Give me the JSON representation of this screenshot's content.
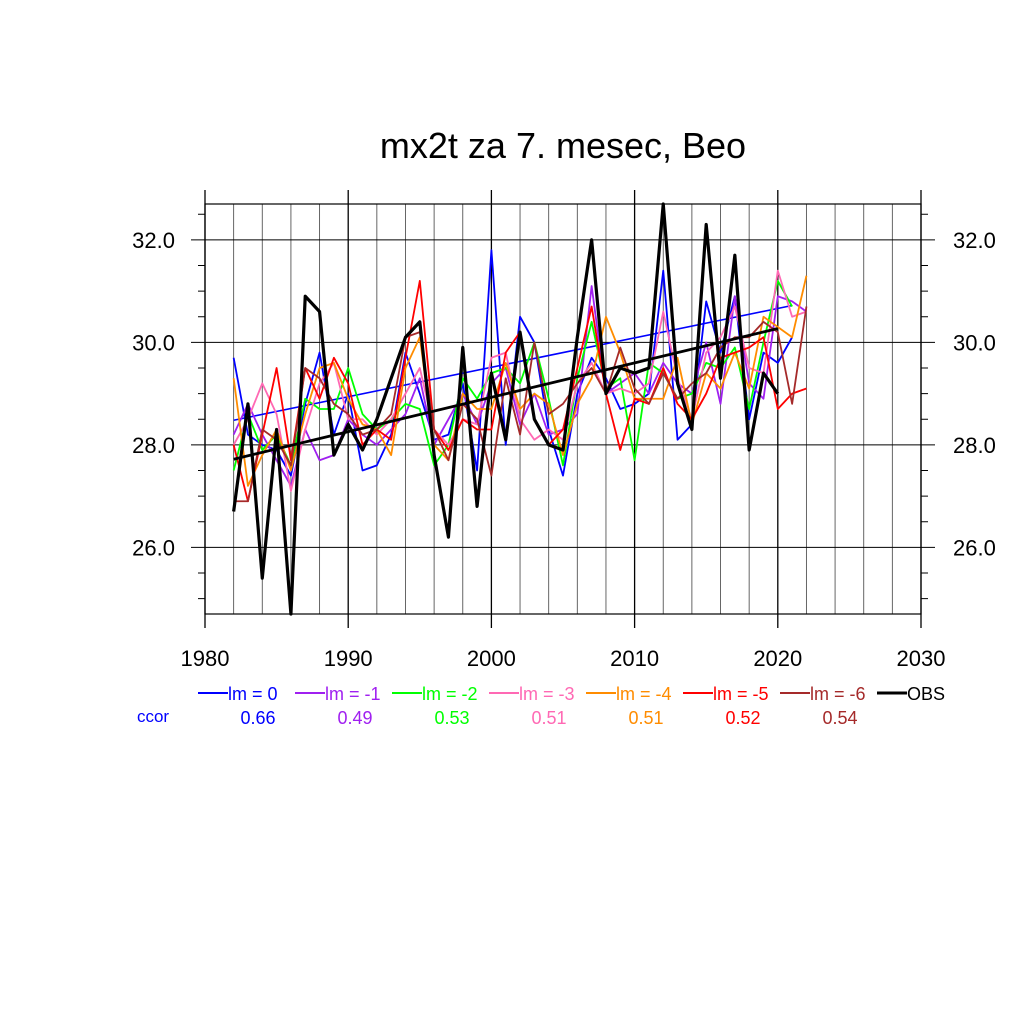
{
  "chart_data": {
    "type": "line",
    "title": "mx2t za 7. mesec, Beo",
    "xlabel": "",
    "ylabel": "",
    "xlim": [
      1980,
      2030
    ],
    "ylim": [
      24.7,
      32.7
    ],
    "x_major_ticks": [
      1980,
      1990,
      2000,
      2010,
      2020,
      2030
    ],
    "x_tick_labels": [
      "1980",
      "1990",
      "2000",
      "2010",
      "2020",
      "2030"
    ],
    "y_major_ticks": [
      26.0,
      28.0,
      30.0,
      32.0
    ],
    "y_tick_labels": [
      "26.0",
      "28.0",
      "30.0",
      "32.0"
    ],
    "grid": true,
    "legend_position": "bottom",
    "ccor_label": "ccor",
    "series": [
      {
        "name": "lm = 0",
        "color": "#0000ff",
        "ccor": "0.66",
        "x": [
          1982,
          1983,
          1984,
          1985,
          1986,
          1987,
          1988,
          1989,
          1990,
          1991,
          1992,
          1993,
          1994,
          1995,
          1996,
          1997,
          1998,
          1999,
          2000,
          2001,
          2002,
          2003,
          2004,
          2005,
          2006,
          2007,
          2008,
          2009,
          2010,
          2011,
          2012,
          2013,
          2014,
          2015,
          2016,
          2017,
          2018,
          2019,
          2020,
          2021
        ],
        "values": [
          29.7,
          28.2,
          28.0,
          27.9,
          27.4,
          28.8,
          29.8,
          28.2,
          29.0,
          27.5,
          27.6,
          28.2,
          29.8,
          29.0,
          28.1,
          28.2,
          29.2,
          27.5,
          31.8,
          28.0,
          30.5,
          30.0,
          28.3,
          27.4,
          29.0,
          29.7,
          29.3,
          28.7,
          28.8,
          29.0,
          31.4,
          28.1,
          28.4,
          30.8,
          29.8,
          30.9,
          28.5,
          29.8,
          29.6,
          30.1
        ],
        "trend": [
          28.48,
          30.72
        ]
      },
      {
        "name": "lm = -1",
        "color": "#a020f0",
        "ccor": "0.49",
        "x": [
          1982,
          1983,
          1984,
          1985,
          1986,
          1987,
          1988,
          1989,
          1990,
          1991,
          1992,
          1993,
          1994,
          1995,
          1996,
          1997,
          1998,
          1999,
          2000,
          2001,
          2002,
          2003,
          2004,
          2005,
          2006,
          2007,
          2008,
          2009,
          2010,
          2011,
          2012,
          2013,
          2014,
          2015,
          2016,
          2017,
          2018,
          2019,
          2020,
          2021,
          2022
        ],
        "values": [
          28.2,
          28.8,
          28.2,
          27.7,
          27.2,
          28.3,
          27.7,
          27.8,
          28.5,
          28.2,
          28.0,
          28.3,
          28.6,
          29.3,
          28.0,
          28.5,
          29.0,
          28.4,
          29.2,
          29.5,
          28.4,
          29.0,
          28.2,
          28.3,
          28.6,
          31.1,
          29.0,
          29.2,
          29.4,
          29.0,
          29.6,
          29.2,
          29.0,
          30.0,
          28.8,
          30.9,
          29.2,
          28.9,
          30.9,
          30.8,
          30.6
        ]
      },
      {
        "name": "lm = -2",
        "color": "#00ff00",
        "ccor": "0.53",
        "x": [
          1982,
          1983,
          1984,
          1985,
          1986,
          1987,
          1988,
          1989,
          1990,
          1991,
          1992,
          1993,
          1994,
          1995,
          1996,
          1997,
          1998,
          1999,
          2000,
          2001,
          2002,
          2003,
          2004,
          2005,
          2006,
          2007,
          2008,
          2009,
          2010,
          2011,
          2012,
          2013,
          2014,
          2015,
          2016,
          2017,
          2018,
          2019,
          2020,
          2021
        ],
        "values": [
          27.5,
          28.6,
          27.9,
          28.2,
          27.6,
          28.9,
          28.7,
          28.7,
          29.5,
          28.6,
          28.3,
          28.5,
          28.8,
          28.7,
          27.6,
          28.0,
          29.3,
          28.9,
          29.4,
          29.5,
          29.2,
          30.0,
          28.9,
          27.6,
          29.3,
          30.4,
          29.1,
          29.3,
          27.7,
          29.6,
          29.4,
          28.9,
          29.0,
          29.6,
          29.5,
          29.9,
          28.7,
          30.0,
          31.2,
          30.7
        ]
      },
      {
        "name": "lm = -3",
        "color": "#ff69b4",
        "ccor": "0.51",
        "x": [
          1982,
          1983,
          1984,
          1985,
          1986,
          1987,
          1988,
          1989,
          1990,
          1991,
          1992,
          1993,
          1994,
          1995,
          1996,
          1997,
          1998,
          1999,
          2000,
          2001,
          2002,
          2003,
          2004,
          2005,
          2006,
          2007,
          2008,
          2009,
          2010,
          2011,
          2012,
          2013,
          2014,
          2015,
          2016,
          2017,
          2018,
          2019,
          2020,
          2021,
          2022
        ],
        "values": [
          28.0,
          28.5,
          29.2,
          28.6,
          27.1,
          28.3,
          29.2,
          29.6,
          28.5,
          28.5,
          28.2,
          28.5,
          29.0,
          29.5,
          28.3,
          28.0,
          28.5,
          28.4,
          29.7,
          29.8,
          28.5,
          28.1,
          28.3,
          28.1,
          29.2,
          29.6,
          29.0,
          29.1,
          29.0,
          29.2,
          30.6,
          29.3,
          28.5,
          29.8,
          30.1,
          30.7,
          29.5,
          29.4,
          31.4,
          30.5,
          30.6
        ]
      },
      {
        "name": "lm = -4",
        "color": "#ff8c00",
        "ccor": "0.51",
        "x": [
          1982,
          1983,
          1984,
          1985,
          1986,
          1987,
          1988,
          1989,
          1990,
          1991,
          1992,
          1993,
          1994,
          1995,
          1996,
          1997,
          1998,
          1999,
          2000,
          2001,
          2002,
          2003,
          2004,
          2005,
          2006,
          2007,
          2008,
          2009,
          2010,
          2011,
          2012,
          2013,
          2014,
          2015,
          2016,
          2017,
          2018,
          2019,
          2020,
          2021,
          2022
        ],
        "values": [
          29.3,
          27.2,
          27.8,
          28.3,
          27.5,
          28.6,
          29.5,
          29.6,
          28.9,
          28.4,
          28.3,
          27.8,
          29.5,
          30.1,
          28.0,
          27.7,
          29.0,
          28.7,
          28.7,
          29.6,
          28.7,
          29.0,
          28.8,
          27.8,
          28.8,
          29.3,
          30.5,
          29.8,
          28.9,
          28.9,
          28.9,
          29.7,
          28.4,
          29.4,
          29.1,
          29.8,
          29.1,
          30.5,
          30.3,
          30.1,
          31.3
        ]
      },
      {
        "name": "lm = -5",
        "color": "#ff0000",
        "ccor": "0.52",
        "x": [
          1982,
          1983,
          1984,
          1985,
          1986,
          1987,
          1988,
          1989,
          1990,
          1991,
          1992,
          1993,
          1994,
          1995,
          1996,
          1997,
          1998,
          1999,
          2000,
          2001,
          2002,
          2003,
          2004,
          2005,
          2006,
          2007,
          2008,
          2009,
          2010,
          2011,
          2012,
          2013,
          2014,
          2015,
          2016,
          2017,
          2018,
          2019,
          2020,
          2021,
          2022
        ],
        "values": [
          28.0,
          26.9,
          28.2,
          29.5,
          27.7,
          29.5,
          28.9,
          29.7,
          29.2,
          28.0,
          28.3,
          28.1,
          29.7,
          31.2,
          28.3,
          27.9,
          28.5,
          28.3,
          28.3,
          29.8,
          30.2,
          28.5,
          28.0,
          28.3,
          29.5,
          30.7,
          29.0,
          27.9,
          28.9,
          28.8,
          29.5,
          28.8,
          28.5,
          29.0,
          29.7,
          29.8,
          29.9,
          30.1,
          28.7,
          29.0,
          29.1
        ]
      },
      {
        "name": "lm = -6",
        "color": "#a52a2a",
        "ccor": "0.54",
        "x": [
          1982,
          1983,
          1984,
          1985,
          1986,
          1987,
          1988,
          1989,
          1990,
          1991,
          1992,
          1993,
          1994,
          1995,
          1996,
          1997,
          1998,
          1999,
          2000,
          2001,
          2002,
          2003,
          2004,
          2005,
          2006,
          2007,
          2008,
          2009,
          2010,
          2011,
          2012,
          2013,
          2014,
          2015,
          2016,
          2017,
          2018,
          2019,
          2020,
          2021,
          2022
        ],
        "values": [
          26.9,
          26.9,
          28.3,
          28.1,
          27.6,
          29.5,
          29.3,
          28.8,
          28.6,
          28.2,
          28.3,
          28.6,
          30.1,
          30.2,
          28.3,
          27.7,
          28.8,
          28.5,
          27.4,
          29.3,
          28.2,
          30.0,
          28.6,
          28.8,
          29.2,
          29.5,
          29.0,
          29.9,
          29.1,
          28.8,
          29.4,
          28.9,
          29.2,
          29.4,
          29.9,
          30.1,
          30.1,
          30.4,
          30.2,
          28.8,
          30.7
        ]
      },
      {
        "name": "OBS",
        "color": "#000000",
        "ccor": "",
        "x": [
          1982,
          1983,
          1984,
          1985,
          1986,
          1987,
          1988,
          1989,
          1990,
          1991,
          1992,
          1993,
          1994,
          1995,
          1996,
          1997,
          1998,
          1999,
          2000,
          2001,
          2002,
          2003,
          2004,
          2005,
          2006,
          2007,
          2008,
          2009,
          2010,
          2011,
          2012,
          2013,
          2014,
          2015,
          2016,
          2017,
          2018,
          2019,
          2020
        ],
        "values": [
          26.7,
          28.8,
          25.4,
          28.3,
          24.7,
          30.9,
          30.6,
          27.8,
          28.4,
          27.9,
          28.5,
          29.3,
          30.1,
          30.4,
          27.8,
          26.2,
          29.9,
          26.8,
          29.4,
          28.1,
          30.2,
          28.5,
          28.0,
          27.9,
          30.1,
          32.0,
          29.0,
          29.5,
          29.4,
          29.5,
          32.7,
          29.2,
          28.3,
          32.3,
          29.3,
          31.7,
          27.9,
          29.4,
          29.0
        ],
        "trend": [
          27.72,
          30.27
        ]
      }
    ]
  }
}
